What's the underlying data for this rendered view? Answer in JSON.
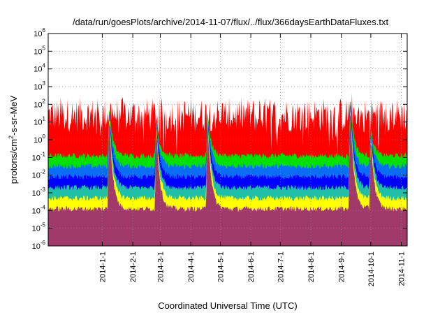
{
  "chart_data": {
    "type": "area",
    "title": "/data/run/goesPlots/archive/2014-11-07/flux/../flux/366daysEarthDataFluxes.txt",
    "xlabel": "Coordinated Universal Time (UTC)",
    "ylabel_base": "protons/cm",
    "ylabel_sup": "2",
    "ylabel_rest": "-s-sr-MeV",
    "y_scale": "log",
    "ylim_exp": [
      -6,
      6
    ],
    "y_tick_labels": [
      {
        "base": "10",
        "exp": "-6"
      },
      {
        "base": "10",
        "exp": "-5"
      },
      {
        "base": "10",
        "exp": "-4"
      },
      {
        "base": "10",
        "exp": "-3"
      },
      {
        "base": "10",
        "exp": "-2"
      },
      {
        "base": "10",
        "exp": "-1"
      },
      {
        "base": "10",
        "exp": "0"
      },
      {
        "base": "10",
        "exp": "1"
      },
      {
        "base": "10",
        "exp": "2"
      },
      {
        "base": "10",
        "exp": "3"
      },
      {
        "base": "10",
        "exp": "4"
      },
      {
        "base": "10",
        "exp": "5"
      },
      {
        "base": "10",
        "exp": "6"
      }
    ],
    "xlim": [
      "2013-11-07",
      "2014-11-07"
    ],
    "x_ticks": [
      "2014-1-1",
      "2014-2-1",
      "2014-3-1",
      "2014-4-1",
      "2014-5-1",
      "2014-6-1",
      "2014-7-1",
      "2014-8-1",
      "2014-9-1",
      "2014-10-1",
      "2014-11-1"
    ],
    "x_tick_dates": [
      "2014-01-01",
      "2014-02-01",
      "2014-03-01",
      "2014-04-01",
      "2014-05-01",
      "2014-06-01",
      "2014-07-01",
      "2014-08-01",
      "2014-09-01",
      "2014-10-01",
      "2014-11-01"
    ],
    "grid": true,
    "events": [
      {
        "date": "2014-01-08",
        "peak_exp": 2.3
      },
      {
        "date": "2014-02-25",
        "peak_exp": 1.3
      },
      {
        "date": "2014-04-18",
        "peak_exp": 1.9
      },
      {
        "date": "2014-09-10",
        "peak_exp": 3.0
      },
      {
        "date": "2014-10-01",
        "peak_exp": 0.8
      }
    ],
    "series": [
      {
        "color": "#a03a6a",
        "base_exp": -3.9
      },
      {
        "color": "#ffff00",
        "base_exp": -3.3
      },
      {
        "color": "#20c0a8",
        "base_exp": -2.7
      },
      {
        "color": "#0000ff",
        "base_exp": -2.1
      },
      {
        "color": "#0a6ef5",
        "base_exp": -1.5
      },
      {
        "color": "#00e000",
        "base_exp": -0.9
      },
      {
        "color": "#ff0000",
        "base_exp": 1.4
      }
    ]
  }
}
